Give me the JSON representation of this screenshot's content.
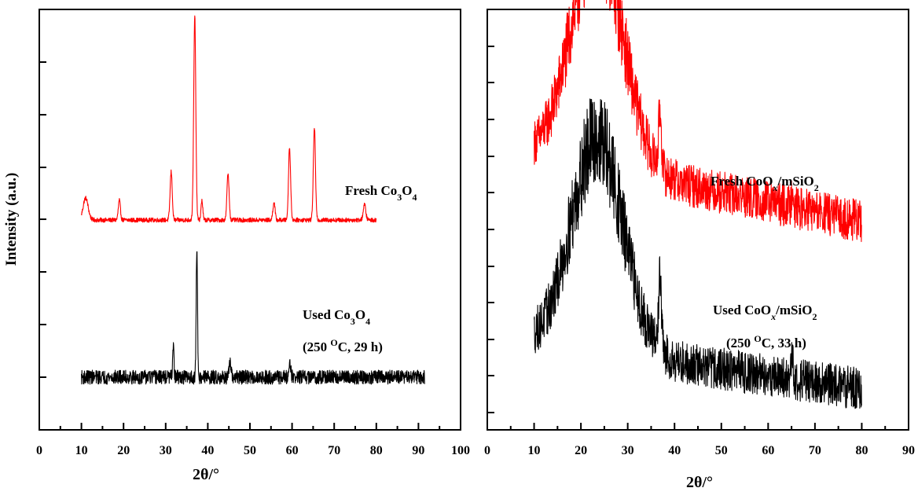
{
  "chart_data": [
    {
      "type": "line",
      "title": "",
      "xlabel": "2θ/°",
      "ylabel": "Intensity (a.u.)",
      "xlim": [
        0,
        100
      ],
      "x_ticks": [
        "0",
        "10",
        "20",
        "30",
        "40",
        "50",
        "60",
        "70",
        "80",
        "90",
        "100"
      ],
      "y_tick_labels": false,
      "grid": false,
      "legend": "none",
      "series": [
        {
          "name": "Fresh Co3O4",
          "color": "#ff0000",
          "x_range": [
            10,
            80
          ],
          "baseline": 0.05,
          "noise": 0.01,
          "peaks": [
            {
              "x": 11.0,
              "height": 0.1,
              "width": 0.6
            },
            {
              "x": 19.0,
              "height": 0.09,
              "width": 0.25
            },
            {
              "x": 31.3,
              "height": 0.22,
              "width": 0.25
            },
            {
              "x": 36.9,
              "height": 0.93,
              "width": 0.25
            },
            {
              "x": 38.6,
              "height": 0.09,
              "width": 0.2
            },
            {
              "x": 44.8,
              "height": 0.21,
              "width": 0.25
            },
            {
              "x": 55.7,
              "height": 0.08,
              "width": 0.25
            },
            {
              "x": 59.4,
              "height": 0.33,
              "width": 0.25
            },
            {
              "x": 65.3,
              "height": 0.42,
              "width": 0.25
            },
            {
              "x": 77.2,
              "height": 0.07,
              "width": 0.3
            }
          ]
        },
        {
          "name": "Used Co3O4",
          "color": "#000000",
          "x_range": [
            10,
            91.5
          ],
          "baseline": -0.65,
          "noise": 0.03,
          "peaks": [
            {
              "x": 31.8,
              "height": 0.14,
              "width": 0.15
            },
            {
              "x": 37.4,
              "height": 0.56,
              "width": 0.15
            },
            {
              "x": 45.3,
              "height": 0.06,
              "width": 0.2
            },
            {
              "x": 59.5,
              "height": 0.07,
              "width": 0.2
            }
          ]
        }
      ],
      "annotations": [
        {
          "series": 0,
          "text": "Fresh Co",
          "sub1": "3",
          "mid": "O",
          "sub2": "4"
        },
        {
          "series": 1,
          "text": "Used Co",
          "sub1": "3",
          "mid": "O",
          "sub2": "4"
        },
        {
          "series": 1,
          "text": "(250 ",
          "sup": "O",
          "tail": "C, 29 h)"
        }
      ]
    },
    {
      "type": "line",
      "title": "",
      "xlabel": "2θ/°",
      "ylabel": "",
      "xlim": [
        0,
        90
      ],
      "x_ticks": [
        "0",
        "10",
        "20",
        "30",
        "40",
        "50",
        "60",
        "70",
        "80",
        "90"
      ],
      "y_tick_labels": false,
      "grid": false,
      "legend": "none",
      "series": [
        {
          "name": "Fresh CoOx/mSiO2",
          "color": "#ff0000",
          "x_range": [
            10,
            80
          ],
          "broad_peak": {
            "center": 23.5,
            "height": 0.95,
            "width": 5.5
          },
          "tail": [
            0.35,
            0.06
          ],
          "noise": 0.09,
          "peaks": [
            {
              "x": 36.9,
              "height": 0.25,
              "width": 0.3
            },
            {
              "x": 65.2,
              "height": 0.1,
              "width": 0.2
            }
          ]
        },
        {
          "name": "Used CoOx/mSiO2",
          "color": "#000000",
          "x_range": [
            10,
            80
          ],
          "broad_peak": {
            "center": 23.5,
            "height": 0.9,
            "width": 5.5
          },
          "tail": [
            0.15,
            -0.05
          ],
          "noise": 0.09,
          "peaks": [
            {
              "x": 36.9,
              "height": 0.32,
              "width": 0.3
            },
            {
              "x": 65.2,
              "height": 0.1,
              "width": 0.2
            }
          ]
        }
      ],
      "annotations": [
        {
          "series": 0,
          "text": "Fresh CoO",
          "subi": "x",
          "mid": "/mSiO",
          "sub2": "2"
        },
        {
          "series": 1,
          "text": "Used CoO",
          "subi": "x",
          "mid": "/mSiO",
          "sub2": "2"
        },
        {
          "series": 1,
          "text": "(250 ",
          "sup": "O",
          "tail": "C, 33 h)"
        }
      ]
    }
  ]
}
